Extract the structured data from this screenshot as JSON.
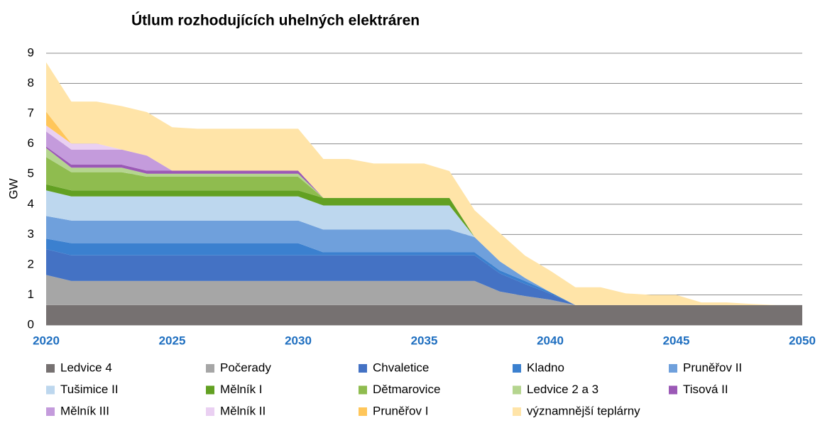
{
  "chart_data": {
    "type": "stacked_area",
    "title": "Útlum rozhodujících uhelných elektráren",
    "y_label": "GW",
    "x": [
      2020,
      2021,
      2022,
      2023,
      2024,
      2025,
      2026,
      2027,
      2028,
      2029,
      2030,
      2031,
      2032,
      2033,
      2034,
      2035,
      2036,
      2037,
      2038,
      2039,
      2040,
      2041,
      2042,
      2043,
      2044,
      2045,
      2046,
      2047,
      2048,
      2049,
      2050
    ],
    "xlim": [
      2020,
      2050
    ],
    "xticks": [
      2020,
      2025,
      2030,
      2035,
      2040,
      2045,
      2050
    ],
    "ylim": [
      0,
      9
    ],
    "yticks": [
      0,
      1,
      2,
      3,
      4,
      5,
      6,
      7,
      8,
      9
    ],
    "grid": true,
    "series": [
      {
        "name": "Ledvice 4",
        "color": "#767171",
        "values": [
          0.66,
          0.66,
          0.66,
          0.66,
          0.66,
          0.66,
          0.66,
          0.66,
          0.66,
          0.66,
          0.66,
          0.66,
          0.66,
          0.66,
          0.66,
          0.66,
          0.66,
          0.66,
          0.66,
          0.66,
          0.66,
          0.66,
          0.66,
          0.66,
          0.66,
          0.66,
          0.66,
          0.66,
          0.66,
          0.66,
          0.66
        ]
      },
      {
        "name": "Počerady",
        "color": "#a6a6a6",
        "values": [
          1.0,
          0.8,
          0.8,
          0.8,
          0.8,
          0.8,
          0.8,
          0.8,
          0.8,
          0.8,
          0.8,
          0.8,
          0.8,
          0.8,
          0.8,
          0.8,
          0.8,
          0.8,
          0.45,
          0.3,
          0.18,
          0,
          0,
          0,
          0,
          0,
          0,
          0,
          0,
          0,
          0
        ]
      },
      {
        "name": "Chvaletice",
        "color": "#4472c4",
        "values": [
          0.85,
          0.85,
          0.85,
          0.85,
          0.85,
          0.85,
          0.85,
          0.85,
          0.85,
          0.85,
          0.85,
          0.85,
          0.85,
          0.85,
          0.85,
          0.85,
          0.85,
          0.85,
          0.6,
          0.4,
          0.2,
          0,
          0,
          0,
          0,
          0,
          0,
          0,
          0,
          0,
          0
        ]
      },
      {
        "name": "Kladno",
        "color": "#3b80cf",
        "values": [
          0.35,
          0.4,
          0.4,
          0.4,
          0.4,
          0.4,
          0.4,
          0.4,
          0.4,
          0.4,
          0.4,
          0.1,
          0.1,
          0.1,
          0.1,
          0.1,
          0.1,
          0.1,
          0.1,
          0.1,
          0.05,
          0,
          0,
          0,
          0,
          0,
          0,
          0,
          0,
          0,
          0
        ]
      },
      {
        "name": "Pruněřov II",
        "color": "#6fa0dc",
        "values": [
          0.75,
          0.75,
          0.75,
          0.75,
          0.75,
          0.75,
          0.75,
          0.75,
          0.75,
          0.75,
          0.75,
          0.75,
          0.75,
          0.75,
          0.75,
          0.75,
          0.75,
          0.5,
          0.3,
          0.1,
          0,
          0,
          0,
          0,
          0,
          0,
          0,
          0,
          0,
          0,
          0
        ]
      },
      {
        "name": "Tušimice II",
        "color": "#bdd7ee",
        "values": [
          0.85,
          0.8,
          0.8,
          0.8,
          0.8,
          0.8,
          0.8,
          0.8,
          0.8,
          0.8,
          0.8,
          0.8,
          0.8,
          0.8,
          0.8,
          0.8,
          0.8,
          0,
          0,
          0,
          0,
          0,
          0,
          0,
          0,
          0,
          0,
          0,
          0,
          0,
          0
        ]
      },
      {
        "name": "Mělník I",
        "color": "#62a022",
        "values": [
          0.2,
          0.2,
          0.2,
          0.2,
          0.2,
          0.2,
          0.2,
          0.2,
          0.2,
          0.2,
          0.2,
          0.25,
          0.25,
          0.25,
          0.25,
          0.25,
          0.25,
          0,
          0,
          0,
          0,
          0,
          0,
          0,
          0,
          0,
          0,
          0,
          0,
          0,
          0
        ]
      },
      {
        "name": "Dětmarovice",
        "color": "#8fbc4f",
        "values": [
          0.9,
          0.6,
          0.6,
          0.6,
          0.45,
          0.45,
          0.45,
          0.45,
          0.45,
          0.45,
          0.45,
          0,
          0,
          0,
          0,
          0,
          0,
          0,
          0,
          0,
          0,
          0,
          0,
          0,
          0,
          0,
          0,
          0,
          0,
          0,
          0
        ]
      },
      {
        "name": "Ledvice 2 a 3",
        "color": "#b5d58f",
        "values": [
          0.3,
          0.15,
          0.15,
          0.15,
          0.1,
          0.1,
          0.1,
          0.1,
          0.1,
          0.1,
          0.1,
          0,
          0,
          0,
          0,
          0,
          0,
          0,
          0,
          0,
          0,
          0,
          0,
          0,
          0,
          0,
          0,
          0,
          0,
          0,
          0
        ]
      },
      {
        "name": "Tisová II",
        "color": "#9b59b6",
        "values": [
          0.05,
          0.1,
          0.1,
          0.1,
          0.1,
          0.1,
          0.1,
          0.1,
          0.1,
          0.1,
          0.1,
          0,
          0,
          0,
          0,
          0,
          0,
          0,
          0,
          0,
          0,
          0,
          0,
          0,
          0,
          0,
          0,
          0,
          0,
          0,
          0
        ]
      },
      {
        "name": "Mělník III",
        "color": "#c49bdc",
        "values": [
          0.5,
          0.5,
          0.5,
          0.5,
          0.5,
          0,
          0,
          0,
          0,
          0,
          0,
          0,
          0,
          0,
          0,
          0,
          0,
          0,
          0,
          0,
          0,
          0,
          0,
          0,
          0,
          0,
          0,
          0,
          0,
          0,
          0
        ]
      },
      {
        "name": "Mělník II",
        "color": "#ead0f2",
        "values": [
          0.2,
          0.2,
          0.2,
          0,
          0,
          0,
          0,
          0,
          0,
          0,
          0,
          0,
          0,
          0,
          0,
          0,
          0,
          0,
          0,
          0,
          0,
          0,
          0,
          0,
          0,
          0,
          0,
          0,
          0,
          0,
          0
        ]
      },
      {
        "name": "Pruněřov I",
        "color": "#ffc65a",
        "values": [
          0.45,
          0,
          0,
          0,
          0,
          0,
          0,
          0,
          0,
          0,
          0,
          0,
          0,
          0,
          0,
          0,
          0,
          0,
          0,
          0,
          0,
          0,
          0,
          0,
          0,
          0,
          0,
          0,
          0,
          0,
          0
        ]
      },
      {
        "name": "významnější teplárny",
        "color": "#ffe4a8",
        "values": [
          1.64,
          1.39,
          1.39,
          1.44,
          1.44,
          1.44,
          1.39,
          1.39,
          1.39,
          1.39,
          1.39,
          1.29,
          1.29,
          1.14,
          1.14,
          1.14,
          0.89,
          0.89,
          0.94,
          0.74,
          0.71,
          0.59,
          0.59,
          0.39,
          0.34,
          0.34,
          0.09,
          0.09,
          0.04,
          0,
          0
        ]
      }
    ]
  }
}
